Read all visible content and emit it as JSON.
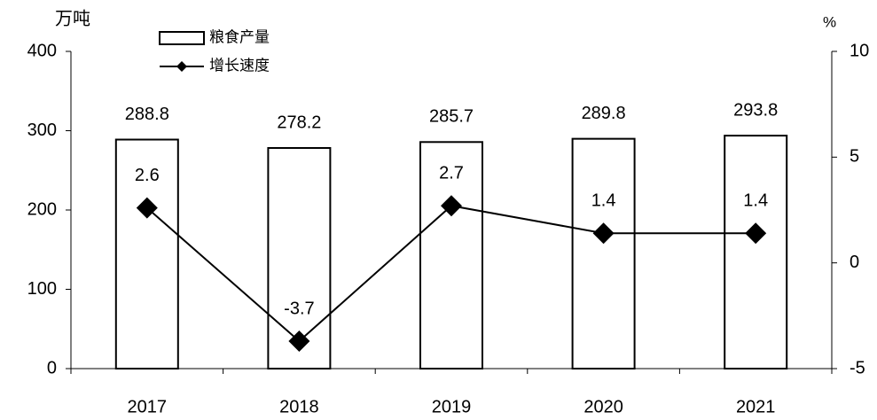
{
  "chart_data": {
    "type": "bar",
    "y_unit": "万吨",
    "y2_unit": "%",
    "categories": [
      "2017",
      "2018",
      "2019",
      "2020",
      "2021"
    ],
    "series": [
      {
        "name": "粮食产量",
        "type": "bar",
        "color": "#000000",
        "values": [
          288.8,
          278.2,
          285.7,
          289.8,
          293.8
        ]
      },
      {
        "name": "增长速度",
        "type": "line",
        "axis": "y2",
        "color": "#000000",
        "values": [
          2.6,
          -3.7,
          2.7,
          1.4,
          1.4
        ]
      }
    ],
    "ylim": [
      0,
      400
    ],
    "yticks": [
      0,
      100,
      200,
      300,
      400
    ],
    "y2lim": [
      -5,
      10
    ],
    "y2ticks": [
      -5,
      0,
      5,
      10
    ],
    "grid": false
  }
}
